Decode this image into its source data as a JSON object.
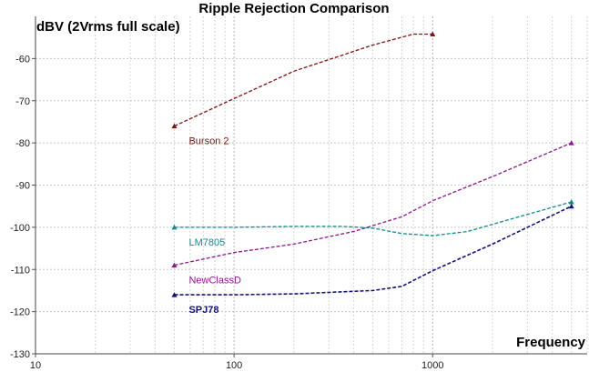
{
  "chart_data": {
    "type": "line",
    "title": "Ripple Rejection Comparison",
    "ylabel": "dBV (2Vrms full scale)",
    "xlabel": "Frequency",
    "x_scale": "log",
    "xlim": [
      10,
      6000
    ],
    "ylim": [
      -130,
      -50
    ],
    "x_ticks": [
      {
        "value": 10,
        "label": "10"
      },
      {
        "value": 100,
        "label": "100"
      },
      {
        "value": 1000,
        "label": "1000"
      }
    ],
    "y_ticks": [
      {
        "value": -60,
        "label": "-60"
      },
      {
        "value": -70,
        "label": "-70"
      },
      {
        "value": -80,
        "label": "-80"
      },
      {
        "value": -90,
        "label": "-90"
      },
      {
        "value": -100,
        "label": "-100"
      },
      {
        "value": -110,
        "label": "-110"
      },
      {
        "value": -120,
        "label": "-120"
      },
      {
        "value": -130,
        "label": "-130"
      }
    ],
    "grid": true,
    "series": [
      {
        "name": "Burson 2",
        "color": "#7b1515",
        "bold": false,
        "points": [
          [
            50,
            -76
          ],
          [
            100,
            -69.5
          ],
          [
            200,
            -63
          ],
          [
            500,
            -56.8
          ],
          [
            800,
            -54.2
          ],
          [
            1000,
            -54.2
          ]
        ]
      },
      {
        "name": "LM7805",
        "color": "#138a8a",
        "bold": false,
        "points": [
          [
            50,
            -100
          ],
          [
            100,
            -100
          ],
          [
            200,
            -99.8
          ],
          [
            350,
            -99.8
          ],
          [
            500,
            -100.2
          ],
          [
            700,
            -101.5
          ],
          [
            1000,
            -102
          ],
          [
            1500,
            -101
          ],
          [
            2500,
            -98
          ],
          [
            5000,
            -94
          ]
        ]
      },
      {
        "name": "NewClassD",
        "color": "#8a1a8a",
        "bold": false,
        "points": [
          [
            50,
            -109
          ],
          [
            100,
            -106
          ],
          [
            200,
            -104
          ],
          [
            400,
            -101
          ],
          [
            700,
            -97.5
          ],
          [
            1000,
            -93.7
          ],
          [
            2000,
            -88
          ],
          [
            5000,
            -80
          ]
        ]
      },
      {
        "name": "SPJ78",
        "color": "#141478",
        "bold": true,
        "points": [
          [
            50,
            -116
          ],
          [
            100,
            -116
          ],
          [
            200,
            -115.8
          ],
          [
            500,
            -115
          ],
          [
            700,
            -114
          ],
          [
            1000,
            -110.3
          ],
          [
            2000,
            -104
          ],
          [
            5000,
            -95
          ]
        ]
      }
    ]
  }
}
